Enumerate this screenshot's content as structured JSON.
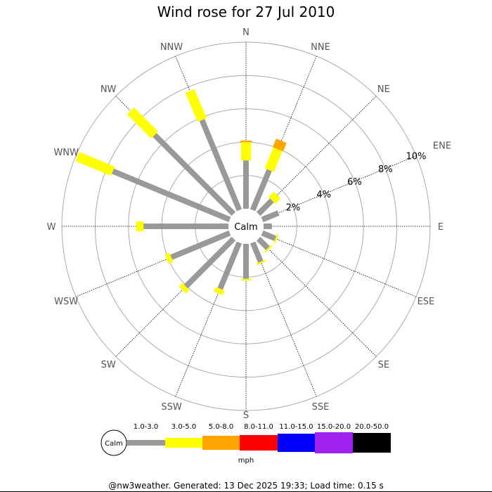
{
  "chart_data": {
    "type": "bar",
    "polar": true,
    "title": "Wind rose for 27 Jul 2010",
    "directions": [
      "N",
      "NNE",
      "NE",
      "ENE",
      "E",
      "ESE",
      "SE",
      "SSE",
      "S",
      "SSW",
      "SW",
      "WSW",
      "W",
      "WNW",
      "NW",
      "NNW"
    ],
    "ring_ticks": [
      2,
      4,
      6,
      8,
      10
    ],
    "ring_tick_labels": [
      "2%",
      "4%",
      "6%",
      "8%",
      "10%"
    ],
    "rmax": 10,
    "center_label": "Calm",
    "unit_label": "mph",
    "stacked": true,
    "series": [
      {
        "name": "1.0-3.0",
        "color": "#999999",
        "values": [
          2.9,
          2.6,
          1.15,
          1.05,
          0.5,
          0.85,
          0.8,
          1.25,
          2.1,
          3.0,
          4.05,
          3.8,
          5.1,
          7.6,
          6.7,
          5.85
        ]
      },
      {
        "name": "3.0-5.0",
        "color": "#ffff00",
        "values": [
          1.1,
          1.35,
          0.45,
          0,
          0,
          0.1,
          0.1,
          0.1,
          0.1,
          0.3,
          0.3,
          0.3,
          0.45,
          2.3,
          2.05,
          1.9
        ]
      },
      {
        "name": "5.0-8.0",
        "color": "#ffa500",
        "values": [
          0.1,
          0.55,
          0,
          0,
          0,
          0,
          0,
          0,
          0,
          0,
          0,
          0,
          0,
          0,
          0,
          0
        ]
      },
      {
        "name": "8.0-11.0",
        "color": "#ff0000",
        "values": [
          0,
          0,
          0,
          0,
          0,
          0,
          0,
          0,
          0,
          0,
          0,
          0,
          0,
          0,
          0,
          0
        ]
      },
      {
        "name": "11.0-15.0",
        "color": "#0000ff",
        "values": [
          0,
          0,
          0,
          0,
          0,
          0,
          0,
          0,
          0,
          0,
          0,
          0,
          0,
          0,
          0,
          0
        ]
      },
      {
        "name": "15.0-20.0",
        "color": "#a020f0",
        "values": [
          0,
          0,
          0,
          0,
          0,
          0,
          0,
          0,
          0,
          0,
          0,
          0,
          0,
          0,
          0,
          0
        ]
      },
      {
        "name": "20.0-50.0",
        "color": "#000000",
        "values": [
          0,
          0,
          0,
          0,
          0,
          0,
          0,
          0,
          0,
          0,
          0,
          0,
          0,
          0,
          0,
          0
        ]
      }
    ]
  },
  "footer": "@nw3weather. Generated: 13 Dec 2025 19:33; Load time: 0.15 s"
}
